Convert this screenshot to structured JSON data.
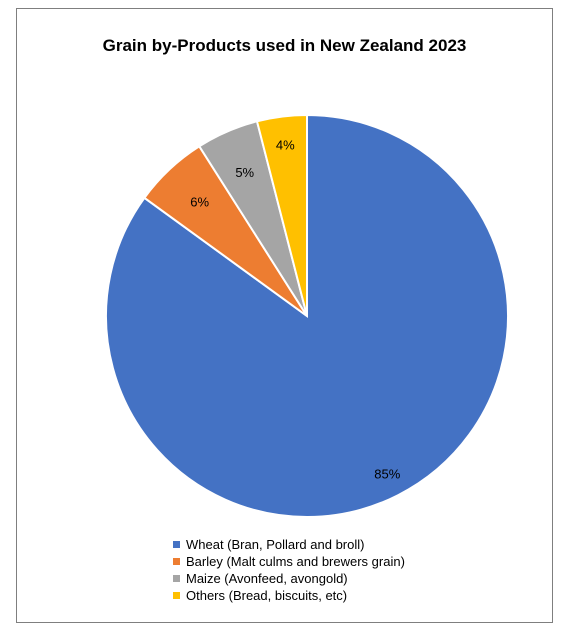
{
  "chart_data": {
    "type": "pie",
    "title": "Grain by-Products used in New Zealand 2023",
    "slices": [
      {
        "label": "Wheat (Bran, Pollard and broll)",
        "value": 85,
        "display": "85%",
        "color": "#4472C4"
      },
      {
        "label": "Barley (Malt culms and brewers grain)",
        "value": 6,
        "display": "6%",
        "color": "#ED7D31"
      },
      {
        "label": "Maize (Avonfeed, avongold)",
        "value": 5,
        "display": "5%",
        "color": "#A5A5A5"
      },
      {
        "label": "Others (Bread, biscuits, etc)",
        "value": 4,
        "display": "4%",
        "color": "#FFC000"
      }
    ],
    "legend_position": "bottom"
  }
}
